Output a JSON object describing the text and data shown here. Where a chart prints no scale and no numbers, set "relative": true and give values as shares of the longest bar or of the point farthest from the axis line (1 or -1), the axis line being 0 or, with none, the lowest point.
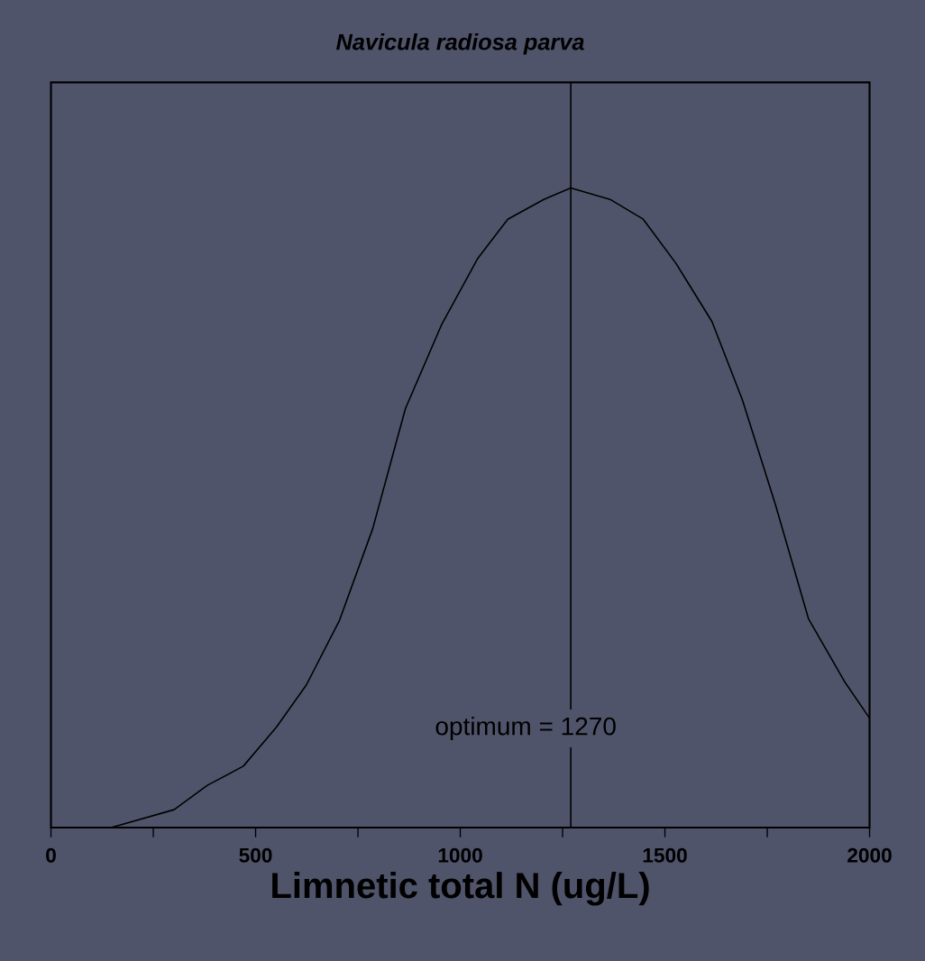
{
  "chart_data": {
    "type": "line",
    "title": "Navicula radiosa parva",
    "xlabel": "Limnetic total N (ug/L)",
    "relative": true,
    "x": [
      147,
      301,
      382,
      470,
      551,
      624,
      705,
      786,
      866,
      955,
      1043,
      1116,
      1204,
      1270,
      1366,
      1447,
      1527,
      1615,
      1689,
      1770,
      1851,
      1939,
      2000
    ],
    "series": [
      {
        "color": "#000000",
        "values": [
          0,
          0.028,
          0.066,
          0.096,
          0.157,
          0.223,
          0.324,
          0.467,
          0.655,
          0.787,
          0.89,
          0.951,
          0.982,
          1,
          0.982,
          0.951,
          0.882,
          0.791,
          0.669,
          0.505,
          0.326,
          0.228,
          0.171
        ]
      }
    ],
    "xlim": [
      0,
      2000
    ],
    "xticks": [
      0,
      {
        "value": 250,
        "label": null
      },
      500,
      {
        "value": 750,
        "label": null
      },
      1000,
      {
        "value": 1250,
        "label": null
      },
      1500,
      {
        "value": 1750,
        "label": null
      },
      2000
    ],
    "ref_lines": [
      {
        "axis": "x",
        "value": 1270,
        "label": "optimum = 1270",
        "color": "#000000"
      }
    ],
    "grid": false,
    "marker": "none",
    "line_style": "solid"
  }
}
